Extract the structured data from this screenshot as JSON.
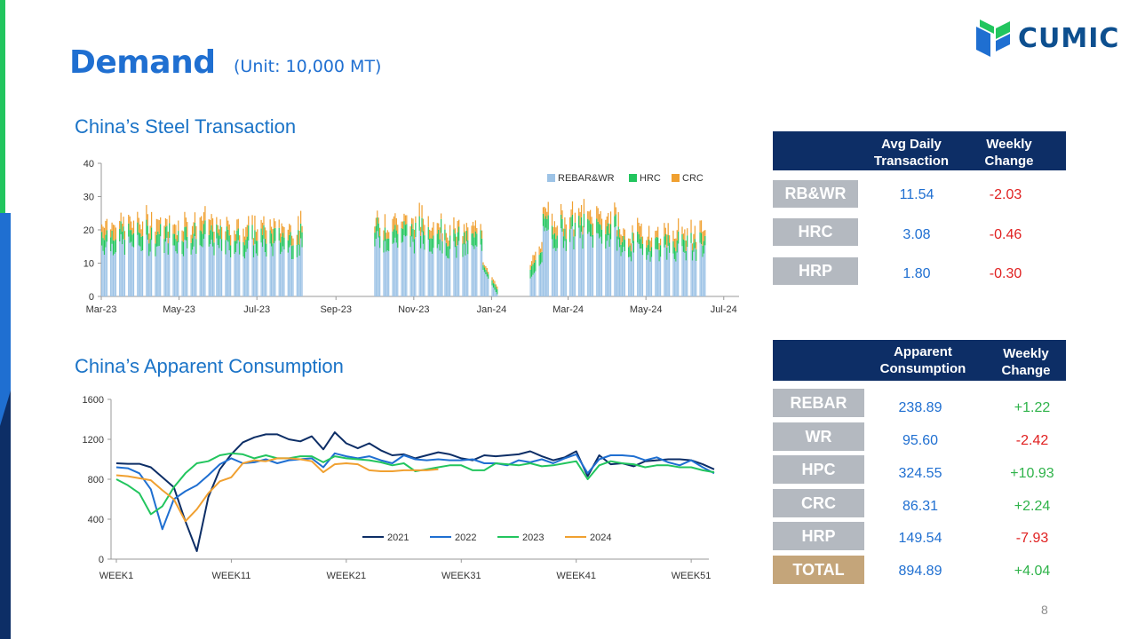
{
  "slide": {
    "title": "Demand",
    "unit": "(Unit: 10,000 MT)",
    "page_number": "8",
    "logo": "CUMIC"
  },
  "section1": {
    "title": "China’s Steel Transaction"
  },
  "section2": {
    "title": "China’s Apparent Consumption"
  },
  "table1": {
    "header": {
      "col1": "Avg Daily Transaction",
      "col2": "Weekly Change"
    },
    "rows": [
      {
        "label": "RB&WR",
        "value": "11.54",
        "change": "-2.03"
      },
      {
        "label": "HRC",
        "value": "3.08",
        "change": "-0.46"
      },
      {
        "label": "HRP",
        "value": "1.80",
        "change": "-0.30"
      }
    ]
  },
  "table2": {
    "header": {
      "col1": "Apparent Consumption",
      "col2": "Weekly Change"
    },
    "rows": [
      {
        "label": "REBAR",
        "value": "238.89",
        "change": "+1.22"
      },
      {
        "label": "WR",
        "value": "95.60",
        "change": "-2.42"
      },
      {
        "label": "HPC",
        "value": "324.55",
        "change": "+10.93"
      },
      {
        "label": "CRC",
        "value": "86.31",
        "change": "+2.24"
      },
      {
        "label": "HRP",
        "value": "149.54",
        "change": "-7.93"
      },
      {
        "label": "TOTAL",
        "value": "894.89",
        "change": "+4.04"
      }
    ]
  },
  "colors": {
    "accent": "#1f6fd1",
    "header": "#0d2e66",
    "positive": "#2fb34a",
    "negative": "#e02020"
  },
  "chart_data": [
    {
      "type": "bar",
      "stacked": true,
      "title": "China’s Steel Transaction",
      "ylim": [
        0,
        40
      ],
      "yticks": [
        0,
        10,
        20,
        30,
        40
      ],
      "xticks": [
        "Mar-23",
        "May-23",
        "Jul-23",
        "Sep-23",
        "Nov-23",
        "Jan-24",
        "Mar-24",
        "May-24",
        "Jul-24"
      ],
      "legend": {
        "position": "top-right"
      },
      "series": [
        {
          "name": "REBAR&WR",
          "color": "#9dc3e6"
        },
        {
          "name": "HRC",
          "color": "#22c55e"
        },
        {
          "name": "CRC",
          "color": "#f0a030"
        }
      ],
      "periods": [
        {
          "start": "Mar-23",
          "segments": [
            {
              "days": 90,
              "rebar": 15.0,
              "hrc": 4.0,
              "crc": 3.2
            },
            {
              "days": 70,
              "rebar": 14.0,
              "hrc": 4.0,
              "crc": 3.0
            }
          ]
        },
        {
          "start": "Oct-23",
          "segments": [
            {
              "days": 55,
              "rebar": 16.0,
              "hrc": 4.0,
              "crc": 2.8
            },
            {
              "days": 30,
              "rebar": 13.5,
              "hrc": 3.8,
              "crc": 2.6
            },
            {
              "days": 12,
              "rebar": 5.0,
              "hrc": 1.5,
              "crc": 1.0
            }
          ]
        },
        {
          "start": "Feb-24",
          "segments": [
            {
              "days": 10,
              "rebar": 9.0,
              "hrc": 3.0,
              "crc": 2.0
            },
            {
              "days": 60,
              "rebar": 17.0,
              "hrc": 4.0,
              "crc": 3.0
            },
            {
              "days": 70,
              "rebar": 13.0,
              "hrc": 3.3,
              "crc": 2.8
            }
          ]
        }
      ]
    },
    {
      "type": "line",
      "title": "China’s Apparent Consumption",
      "ylim": [
        0,
        1600
      ],
      "yticks": [
        0,
        400,
        800,
        1200,
        1600
      ],
      "xticks": [
        "WEEK1",
        "WEEK11",
        "WEEK21",
        "WEEK31",
        "WEEK41",
        "WEEK51"
      ],
      "legend": {
        "position": "bottom"
      },
      "series": [
        {
          "name": "2021",
          "color": "#0d2e66",
          "values": [
            960,
            955,
            955,
            920,
            820,
            720,
            380,
            80,
            620,
            900,
            1050,
            1170,
            1220,
            1250,
            1250,
            1200,
            1180,
            1230,
            1100,
            1270,
            1160,
            1110,
            1160,
            1090,
            1040,
            1050,
            1010,
            1040,
            1070,
            1050,
            1010,
            990,
            1040,
            1030,
            1040,
            1050,
            1080,
            1030,
            990,
            1020,
            1080,
            830,
            1040,
            950,
            960,
            930,
            980,
            990,
            1000,
            1000,
            990,
            950,
            900
          ]
        },
        {
          "name": "2022",
          "color": "#1f6fd1",
          "values": [
            920,
            910,
            860,
            700,
            300,
            600,
            680,
            740,
            840,
            950,
            1010,
            960,
            970,
            1000,
            960,
            990,
            1000,
            1010,
            920,
            1060,
            1030,
            1010,
            1030,
            990,
            960,
            1040,
            1000,
            990,
            1000,
            990,
            990,
            1000,
            960,
            960,
            940,
            990,
            970,
            1000,
            960,
            1010,
            1050,
            860,
            1000,
            1040,
            1040,
            1030,
            990,
            1020,
            970,
            940,
            990,
            920,
            860
          ]
        },
        {
          "name": "2023",
          "color": "#22c55e",
          "values": [
            800,
            740,
            660,
            450,
            530,
            720,
            860,
            960,
            980,
            1040,
            1060,
            1050,
            1010,
            1040,
            1010,
            1010,
            1030,
            1030,
            970,
            1030,
            1010,
            1000,
            990,
            970,
            940,
            960,
            880,
            900,
            920,
            940,
            940,
            890,
            890,
            960,
            950,
            940,
            960,
            930,
            940,
            960,
            980,
            800,
            940,
            980,
            960,
            950,
            920,
            940,
            940,
            920,
            920,
            890,
            870
          ]
        },
        {
          "name": "2024",
          "color": "#f0a030",
          "values": [
            840,
            830,
            810,
            790,
            690,
            600,
            380,
            500,
            660,
            780,
            820,
            960,
            990,
            980,
            1010,
            1010,
            1000,
            980,
            870,
            950,
            960,
            950,
            890,
            880,
            880,
            890,
            890,
            890,
            900
          ]
        }
      ]
    }
  ]
}
